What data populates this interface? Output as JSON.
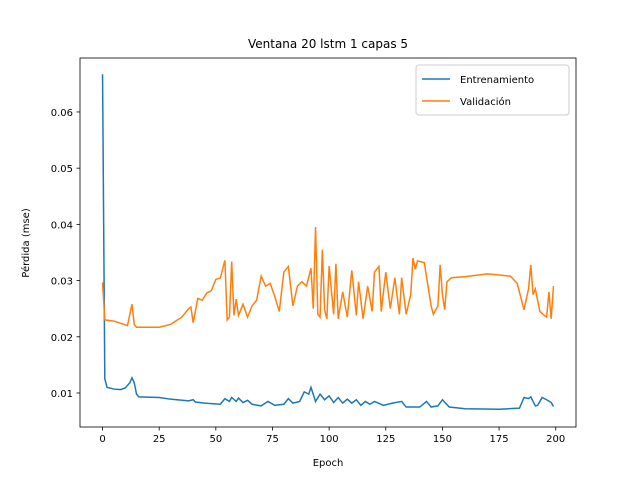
{
  "chart_data": {
    "type": "line",
    "title": "Ventana 20 lstm 1 capas 5",
    "xlabel": "Epoch",
    "ylabel": "Pérdida (mse)",
    "xlim": [
      -9.95,
      208.95
    ],
    "ylim": [
      0.00395,
      0.0696
    ],
    "xticks": [
      0,
      25,
      50,
      75,
      100,
      125,
      150,
      175,
      200
    ],
    "yticks": [
      0.01,
      0.02,
      0.03,
      0.04,
      0.05,
      0.06
    ],
    "legend": "upper right",
    "series": [
      {
        "name": "Entrenamiento",
        "color": "#1f77b4",
        "x": [
          0,
          1,
          2,
          5,
          8,
          10,
          12,
          13,
          14,
          15,
          16,
          25,
          30,
          38,
          40,
          41,
          45,
          52,
          54,
          56,
          57,
          59,
          60,
          62,
          64,
          66,
          70,
          73,
          76,
          80,
          82,
          84,
          87,
          89,
          91,
          92,
          94,
          96,
          98,
          100,
          102,
          104,
          106,
          108,
          110,
          112,
          114,
          116,
          118,
          120,
          124,
          128,
          132,
          134,
          140,
          143,
          145,
          148,
          150,
          153,
          160,
          175,
          184,
          186,
          188,
          189,
          191,
          192,
          194,
          196,
          198,
          199
        ],
        "values": [
          0.0667,
          0.0125,
          0.011,
          0.0107,
          0.0106,
          0.0109,
          0.0118,
          0.0127,
          0.0118,
          0.0098,
          0.0093,
          0.0092,
          0.0089,
          0.0086,
          0.0088,
          0.0084,
          0.0082,
          0.008,
          0.009,
          0.0085,
          0.0092,
          0.0085,
          0.0091,
          0.0083,
          0.0087,
          0.008,
          0.0077,
          0.0085,
          0.0078,
          0.008,
          0.009,
          0.0082,
          0.0085,
          0.0102,
          0.0098,
          0.011,
          0.0085,
          0.0098,
          0.0088,
          0.0095,
          0.0083,
          0.0092,
          0.0082,
          0.0089,
          0.0082,
          0.0088,
          0.0078,
          0.0085,
          0.008,
          0.0085,
          0.0078,
          0.0082,
          0.0085,
          0.0075,
          0.0075,
          0.0085,
          0.0075,
          0.0077,
          0.0088,
          0.0075,
          0.0072,
          0.0071,
          0.0073,
          0.0092,
          0.009,
          0.0093,
          0.0077,
          0.0078,
          0.0092,
          0.0088,
          0.0083,
          0.0076
        ]
      },
      {
        "name": "Validación",
        "color": "#ff7f0e",
        "x": [
          0,
          1,
          5,
          8,
          11,
          13,
          14,
          15,
          25,
          30,
          35,
          38,
          39,
          40,
          42,
          44,
          46,
          48,
          50,
          52,
          54,
          55,
          56,
          57,
          58,
          59,
          60,
          62,
          64,
          66,
          68,
          70,
          72,
          74,
          76,
          78,
          80,
          82,
          84,
          86,
          88,
          90,
          92,
          93,
          94,
          95,
          96,
          97,
          98,
          99,
          100,
          102,
          103,
          104,
          106,
          108,
          110,
          112,
          113,
          115,
          117,
          119,
          120,
          122,
          123,
          125,
          127,
          129,
          131,
          132,
          134,
          136,
          137,
          138,
          139,
          142,
          145,
          146,
          148,
          149,
          150,
          151,
          152,
          154,
          160,
          170,
          180,
          183,
          186,
          188,
          189,
          190,
          191,
          193,
          195,
          196,
          197,
          198,
          199
        ],
        "values": [
          0.0297,
          0.023,
          0.0228,
          0.0224,
          0.022,
          0.0258,
          0.0222,
          0.0217,
          0.0217,
          0.0222,
          0.0235,
          0.025,
          0.0253,
          0.0225,
          0.0268,
          0.0265,
          0.0278,
          0.0282,
          0.0302,
          0.0305,
          0.0336,
          0.023,
          0.0235,
          0.0334,
          0.0238,
          0.0267,
          0.0238,
          0.0258,
          0.0235,
          0.0255,
          0.0265,
          0.0308,
          0.029,
          0.0295,
          0.0272,
          0.0245,
          0.0315,
          0.0325,
          0.0255,
          0.029,
          0.0298,
          0.029,
          0.0322,
          0.025,
          0.0395,
          0.024,
          0.0235,
          0.0355,
          0.0248,
          0.0232,
          0.0326,
          0.024,
          0.033,
          0.0232,
          0.028,
          0.0235,
          0.0318,
          0.0238,
          0.0298,
          0.0232,
          0.029,
          0.0245,
          0.0315,
          0.0325,
          0.0245,
          0.0315,
          0.025,
          0.0305,
          0.024,
          0.0305,
          0.024,
          0.0275,
          0.034,
          0.032,
          0.0335,
          0.0332,
          0.0255,
          0.024,
          0.0255,
          0.0328,
          0.0275,
          0.0248,
          0.0298,
          0.0305,
          0.0307,
          0.0312,
          0.0308,
          0.0295,
          0.0248,
          0.0285,
          0.0328,
          0.0275,
          0.0285,
          0.0245,
          0.0238,
          0.0235,
          0.028,
          0.0232,
          0.029
        ]
      }
    ]
  }
}
